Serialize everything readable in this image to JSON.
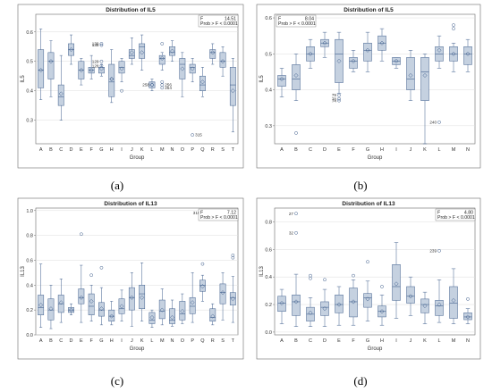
{
  "chart_data": [
    {
      "panel_label": "(a)",
      "type": "boxplot",
      "title": "Distribution of IL5",
      "xlabel": "Group",
      "ylabel": "IL5",
      "ylim": [
        0.22,
        0.66
      ],
      "yticks": [
        "0.3",
        "0.4",
        "0.5",
        "0.6"
      ],
      "categories": [
        "A",
        "B",
        "C",
        "D",
        "E",
        "F",
        "G",
        "H",
        "I",
        "J",
        "K",
        "L",
        "M",
        "N",
        "O",
        "P",
        "Q",
        "R",
        "S",
        "T"
      ],
      "stats": {
        "F_label": "F",
        "F_value": "14.51",
        "prob": "Prob > F < 0.0001"
      },
      "boxes": [
        {
          "min": 0.37,
          "q1": 0.41,
          "median": 0.47,
          "q3": 0.54,
          "max": 0.61,
          "mean": 0.47
        },
        {
          "min": 0.38,
          "q1": 0.44,
          "median": 0.5,
          "q3": 0.53,
          "max": 0.57,
          "mean": 0.5
        },
        {
          "min": 0.3,
          "q1": 0.35,
          "median": 0.38,
          "q3": 0.42,
          "max": 0.52,
          "mean": 0.39
        },
        {
          "min": 0.49,
          "q1": 0.52,
          "median": 0.54,
          "q3": 0.56,
          "max": 0.59,
          "mean": 0.54
        },
        {
          "min": 0.42,
          "q1": 0.44,
          "median": 0.47,
          "q3": 0.5,
          "max": 0.51,
          "mean": 0.47
        },
        {
          "min": 0.44,
          "q1": 0.46,
          "median": 0.47,
          "q3": 0.48,
          "max": 0.52,
          "mean": 0.47
        },
        {
          "min": 0.45,
          "q1": 0.46,
          "median": 0.48,
          "q3": 0.48,
          "max": 0.49,
          "mean": 0.475
        },
        {
          "min": 0.36,
          "q1": 0.38,
          "median": 0.43,
          "q3": 0.49,
          "max": 0.54,
          "mean": 0.44
        },
        {
          "min": 0.43,
          "q1": 0.46,
          "median": 0.48,
          "q3": 0.5,
          "max": 0.51,
          "mean": 0.475
        },
        {
          "min": 0.49,
          "q1": 0.51,
          "median": 0.52,
          "q3": 0.54,
          "max": 0.58,
          "mean": 0.53
        },
        {
          "min": 0.47,
          "q1": 0.51,
          "median": 0.55,
          "q3": 0.56,
          "max": 0.59,
          "mean": 0.53
        },
        {
          "min": 0.4,
          "q1": 0.41,
          "median": 0.43,
          "q3": 0.43,
          "max": 0.44,
          "mean": 0.42
        },
        {
          "min": 0.47,
          "q1": 0.49,
          "median": 0.51,
          "q3": 0.52,
          "max": 0.53,
          "mean": 0.51
        },
        {
          "min": 0.5,
          "q1": 0.52,
          "median": 0.53,
          "q3": 0.55,
          "max": 0.57,
          "mean": 0.535
        },
        {
          "min": 0.38,
          "q1": 0.44,
          "median": 0.49,
          "q3": 0.51,
          "max": 0.53,
          "mean": 0.475
        },
        {
          "min": 0.43,
          "q1": 0.46,
          "median": 0.48,
          "q3": 0.49,
          "max": 0.51,
          "mean": 0.475
        },
        {
          "min": 0.38,
          "q1": 0.4,
          "median": 0.42,
          "q3": 0.45,
          "max": 0.48,
          "mean": 0.43
        },
        {
          "min": 0.49,
          "q1": 0.51,
          "median": 0.53,
          "q3": 0.54,
          "max": 0.56,
          "mean": 0.53
        },
        {
          "min": 0.45,
          "q1": 0.48,
          "median": 0.5,
          "q3": 0.53,
          "max": 0.55,
          "mean": 0.5
        },
        {
          "min": 0.26,
          "q1": 0.35,
          "median": 0.42,
          "q3": 0.48,
          "max": 0.51,
          "mean": 0.4
        }
      ],
      "outliers": [
        {
          "group": "G",
          "value": 0.56,
          "label": "139"
        },
        {
          "group": "G",
          "value": 0.555,
          "label": "135"
        },
        {
          "group": "G",
          "value": 0.5,
          "label": "129"
        },
        {
          "group": "G",
          "value": 0.485,
          "label": "128"
        },
        {
          "group": "H",
          "value": 0.44,
          "label": ""
        },
        {
          "group": "I",
          "value": 0.4,
          "label": ""
        },
        {
          "group": "L",
          "value": 0.42,
          "label": "258"
        },
        {
          "group": "M",
          "value": 0.56,
          "label": ""
        },
        {
          "group": "M",
          "value": 0.43,
          "label": ""
        },
        {
          "group": "M",
          "value": 0.42,
          "label": "256"
        },
        {
          "group": "M",
          "value": 0.41,
          "label": "254"
        },
        {
          "group": "P",
          "value": 0.25,
          "label": "315"
        }
      ]
    },
    {
      "panel_label": "(b)",
      "type": "boxplot",
      "title": "Distribution of IL5",
      "xlabel": "Group",
      "ylabel": "IL5",
      "ylim": [
        0.25,
        0.61
      ],
      "yticks": [
        "0.3",
        "0.4",
        "0.5",
        "0.6"
      ],
      "categories": [
        "A",
        "B",
        "C",
        "D",
        "E",
        "F",
        "G",
        "H",
        "I",
        "J",
        "K",
        "L",
        "M",
        "N"
      ],
      "stats": {
        "F_label": "F",
        "F_value": "8.04",
        "prob": "Prob > F < 0.0001"
      },
      "boxes": [
        {
          "min": 0.38,
          "q1": 0.41,
          "median": 0.43,
          "q3": 0.44,
          "max": 0.46,
          "mean": 0.43
        },
        {
          "min": 0.37,
          "q1": 0.4,
          "median": 0.43,
          "q3": 0.47,
          "max": 0.5,
          "mean": 0.44
        },
        {
          "min": 0.46,
          "q1": 0.48,
          "median": 0.5,
          "q3": 0.52,
          "max": 0.54,
          "mean": 0.5
        },
        {
          "min": 0.49,
          "q1": 0.52,
          "median": 0.53,
          "q3": 0.54,
          "max": 0.56,
          "mean": 0.53
        },
        {
          "min": 0.39,
          "q1": 0.42,
          "median": 0.5,
          "q3": 0.54,
          "max": 0.56,
          "mean": 0.48
        },
        {
          "min": 0.45,
          "q1": 0.46,
          "median": 0.48,
          "q3": 0.49,
          "max": 0.51,
          "mean": 0.48
        },
        {
          "min": 0.45,
          "q1": 0.48,
          "median": 0.51,
          "q3": 0.53,
          "max": 0.56,
          "mean": 0.51
        },
        {
          "min": 0.48,
          "q1": 0.51,
          "median": 0.53,
          "q3": 0.55,
          "max": 0.57,
          "mean": 0.53
        },
        {
          "min": 0.46,
          "q1": 0.47,
          "median": 0.48,
          "q3": 0.49,
          "max": 0.49,
          "mean": 0.48
        },
        {
          "min": 0.37,
          "q1": 0.4,
          "median": 0.43,
          "q3": 0.49,
          "max": 0.51,
          "mean": 0.44
        },
        {
          "min": 0.25,
          "q1": 0.37,
          "median": 0.45,
          "q3": 0.49,
          "max": 0.5,
          "mean": 0.44
        },
        {
          "min": 0.46,
          "q1": 0.48,
          "median": 0.5,
          "q3": 0.52,
          "max": 0.55,
          "mean": 0.51
        },
        {
          "min": 0.45,
          "q1": 0.48,
          "median": 0.5,
          "q3": 0.52,
          "max": 0.53,
          "mean": 0.5
        },
        {
          "min": 0.45,
          "q1": 0.47,
          "median": 0.5,
          "q3": 0.52,
          "max": 0.54,
          "mean": 0.5
        }
      ],
      "outliers": [
        {
          "group": "B",
          "value": 0.28,
          "label": ""
        },
        {
          "group": "E",
          "value": 0.385,
          "label": "79"
        },
        {
          "group": "E",
          "value": 0.375,
          "label": "78"
        },
        {
          "group": "E",
          "value": 0.37,
          "label": "74"
        },
        {
          "group": "L",
          "value": 0.31,
          "label": "240"
        },
        {
          "group": "M",
          "value": 0.58,
          "label": ""
        },
        {
          "group": "M",
          "value": 0.57,
          "label": ""
        }
      ]
    },
    {
      "panel_label": "(c)",
      "type": "boxplot",
      "title": "Distribution of IL13",
      "xlabel": "Group",
      "ylabel": "IL13",
      "ylim": [
        0.0,
        1.02
      ],
      "yticks": [
        "0.0",
        "0.2",
        "0.4",
        "0.6",
        "0.8",
        "1.0"
      ],
      "categories": [
        "A",
        "B",
        "C",
        "D",
        "E",
        "F",
        "G",
        "H",
        "I",
        "J",
        "K",
        "L",
        "M",
        "N",
        "O",
        "P",
        "Q",
        "R",
        "S",
        "T"
      ],
      "stats": {
        "F_label": "F",
        "F_value": "7.12",
        "prob": "Prob > F < 0.0001"
      },
      "boxes": [
        {
          "min": 0.06,
          "q1": 0.16,
          "median": 0.22,
          "q3": 0.32,
          "max": 0.57,
          "mean": 0.24
        },
        {
          "min": 0.05,
          "q1": 0.12,
          "median": 0.2,
          "q3": 0.29,
          "max": 0.4,
          "mean": 0.21
        },
        {
          "min": 0.1,
          "q1": 0.18,
          "median": 0.25,
          "q3": 0.32,
          "max": 0.45,
          "mean": 0.26
        },
        {
          "min": 0.16,
          "q1": 0.18,
          "median": 0.2,
          "q3": 0.22,
          "max": 0.25,
          "mean": 0.2
        },
        {
          "min": 0.1,
          "q1": 0.25,
          "median": 0.3,
          "q3": 0.37,
          "max": 0.56,
          "mean": 0.3
        },
        {
          "min": 0.11,
          "q1": 0.16,
          "median": 0.23,
          "q3": 0.33,
          "max": 0.4,
          "mean": 0.27
        },
        {
          "min": 0.08,
          "q1": 0.15,
          "median": 0.2,
          "q3": 0.26,
          "max": 0.38,
          "mean": 0.21
        },
        {
          "min": 0.08,
          "q1": 0.11,
          "median": 0.15,
          "q3": 0.2,
          "max": 0.27,
          "mean": 0.15
        },
        {
          "min": 0.11,
          "q1": 0.17,
          "median": 0.21,
          "q3": 0.29,
          "max": 0.36,
          "mean": 0.23
        },
        {
          "min": 0.07,
          "q1": 0.2,
          "median": 0.3,
          "q3": 0.38,
          "max": 0.5,
          "mean": 0.3
        },
        {
          "min": 0.11,
          "q1": 0.21,
          "median": 0.33,
          "q3": 0.4,
          "max": 0.58,
          "mean": 0.3
        },
        {
          "min": 0.06,
          "q1": 0.09,
          "median": 0.12,
          "q3": 0.18,
          "max": 0.2,
          "mean": 0.14
        },
        {
          "min": 0.08,
          "q1": 0.13,
          "median": 0.19,
          "q3": 0.28,
          "max": 0.37,
          "mean": 0.2
        },
        {
          "min": 0.07,
          "q1": 0.09,
          "median": 0.12,
          "q3": 0.21,
          "max": 0.28,
          "mean": 0.14
        },
        {
          "min": 0.09,
          "q1": 0.12,
          "median": 0.17,
          "q3": 0.27,
          "max": 0.33,
          "mean": 0.19
        },
        {
          "min": 0.1,
          "q1": 0.17,
          "median": 0.23,
          "q3": 0.3,
          "max": 0.5,
          "mean": 0.26
        },
        {
          "min": 0.27,
          "q1": 0.35,
          "median": 0.4,
          "q3": 0.44,
          "max": 0.48,
          "mean": 0.39
        },
        {
          "min": 0.08,
          "q1": 0.11,
          "median": 0.14,
          "q3": 0.21,
          "max": 0.25,
          "mean": 0.15
        },
        {
          "min": 0.12,
          "q1": 0.25,
          "median": 0.34,
          "q3": 0.41,
          "max": 0.5,
          "mean": 0.34
        },
        {
          "min": 0.1,
          "q1": 0.24,
          "median": 0.3,
          "q3": 0.34,
          "max": 0.47,
          "mean": 0.29
        }
      ],
      "outliers": [
        {
          "group": "E",
          "value": 0.81,
          "label": ""
        },
        {
          "group": "F",
          "value": 0.48,
          "label": ""
        },
        {
          "group": "G",
          "value": 0.54,
          "label": ""
        },
        {
          "group": "Q",
          "value": 0.98,
          "label": "319"
        },
        {
          "group": "Q",
          "value": 0.57,
          "label": ""
        },
        {
          "group": "T",
          "value": 0.64,
          "label": ""
        },
        {
          "group": "T",
          "value": 0.62,
          "label": ""
        }
      ]
    },
    {
      "panel_label": "(d)",
      "type": "boxplot",
      "title": "Distribution of IL13",
      "xlabel": "Group",
      "ylabel": "IL13",
      "ylim": [
        -0.02,
        0.9
      ],
      "yticks": [
        "0.0",
        "0.2",
        "0.4",
        "0.6",
        "0.8"
      ],
      "categories": [
        "A",
        "B",
        "C",
        "D",
        "E",
        "F",
        "G",
        "H",
        "I",
        "J",
        "K",
        "L",
        "M",
        "N"
      ],
      "stats": {
        "F_label": "F",
        "F_value": "4.80",
        "prob": "Prob > F < 0.0001"
      },
      "boxes": [
        {
          "min": 0.06,
          "q1": 0.15,
          "median": 0.21,
          "q3": 0.26,
          "max": 0.31,
          "mean": 0.21
        },
        {
          "min": 0.04,
          "q1": 0.12,
          "median": 0.22,
          "q3": 0.27,
          "max": 0.42,
          "mean": 0.22
        },
        {
          "min": 0.04,
          "q1": 0.08,
          "median": 0.13,
          "q3": 0.18,
          "max": 0.25,
          "mean": 0.14
        },
        {
          "min": 0.04,
          "q1": 0.12,
          "median": 0.18,
          "q3": 0.22,
          "max": 0.31,
          "mean": 0.17
        },
        {
          "min": 0.05,
          "q1": 0.14,
          "median": 0.2,
          "q3": 0.27,
          "max": 0.33,
          "mean": 0.2
        },
        {
          "min": 0.05,
          "q1": 0.11,
          "median": 0.22,
          "q3": 0.32,
          "max": 0.38,
          "mean": 0.22
        },
        {
          "min": 0.08,
          "q1": 0.18,
          "median": 0.25,
          "q3": 0.28,
          "max": 0.37,
          "mean": 0.24
        },
        {
          "min": 0.05,
          "q1": 0.11,
          "median": 0.15,
          "q3": 0.19,
          "max": 0.27,
          "mean": 0.15
        },
        {
          "min": 0.1,
          "q1": 0.23,
          "median": 0.33,
          "q3": 0.49,
          "max": 0.65,
          "mean": 0.35
        },
        {
          "min": 0.12,
          "q1": 0.21,
          "median": 0.26,
          "q3": 0.33,
          "max": 0.4,
          "mean": 0.26
        },
        {
          "min": 0.06,
          "q1": 0.14,
          "median": 0.2,
          "q3": 0.24,
          "max": 0.29,
          "mean": 0.19
        },
        {
          "min": 0.07,
          "q1": 0.12,
          "median": 0.19,
          "q3": 0.23,
          "max": 0.38,
          "mean": 0.2
        },
        {
          "min": 0.06,
          "q1": 0.1,
          "median": 0.21,
          "q3": 0.33,
          "max": 0.46,
          "mean": 0.23
        },
        {
          "min": 0.06,
          "q1": 0.09,
          "median": 0.11,
          "q3": 0.14,
          "max": 0.17,
          "mean": 0.11
        }
      ],
      "outliers": [
        {
          "group": "B",
          "value": 0.86,
          "label": "27"
        },
        {
          "group": "B",
          "value": 0.72,
          "label": "32"
        },
        {
          "group": "C",
          "value": 0.41,
          "label": ""
        },
        {
          "group": "C",
          "value": 0.39,
          "label": ""
        },
        {
          "group": "D",
          "value": 0.38,
          "label": ""
        },
        {
          "group": "F",
          "value": 0.41,
          "label": ""
        },
        {
          "group": "G",
          "value": 0.51,
          "label": ""
        },
        {
          "group": "H",
          "value": 0.33,
          "label": ""
        },
        {
          "group": "L",
          "value": 0.59,
          "label": "239"
        },
        {
          "group": "N",
          "value": 0.24,
          "label": ""
        }
      ]
    }
  ],
  "colors": {
    "box_fill": "#c5d1e0",
    "box_stroke": "#3f5e8c",
    "frame": "#6c6c6c",
    "background": "#ffffff"
  }
}
